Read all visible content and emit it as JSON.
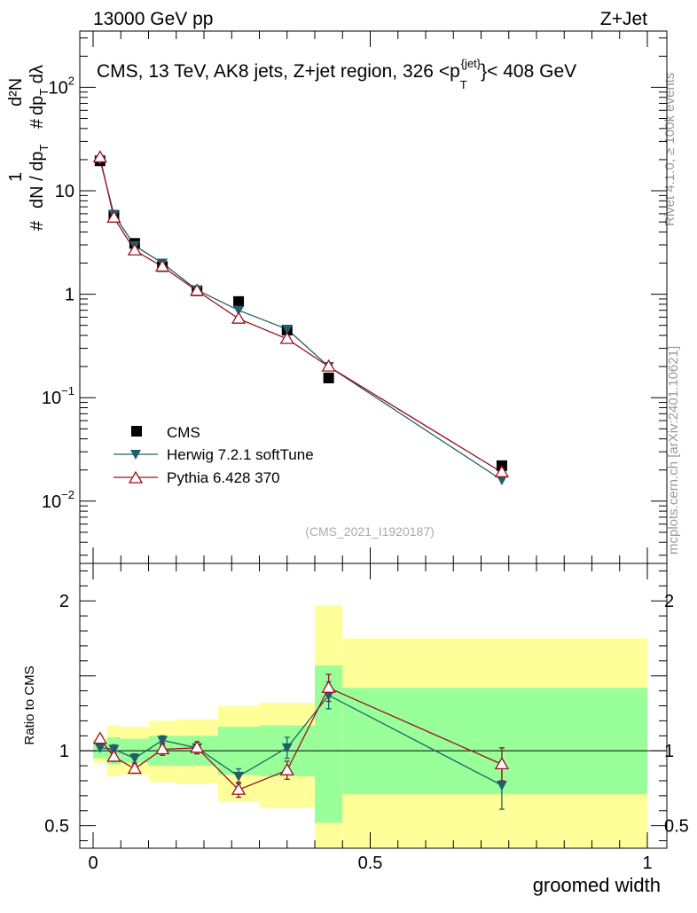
{
  "header": {
    "left": "13000 GeV pp",
    "right": "Z+Jet"
  },
  "side": {
    "rivet": "Rivet 4.1.0, ≥ 100k events",
    "mcplots": "mcplots.cern.ch [arXiv:2401.10621]"
  },
  "colors": {
    "cms": "#000000",
    "herwig": "#1f5f6b",
    "pythia": "#9b1020",
    "band_inner": "#99ff99",
    "band_outer": "#ffff99"
  },
  "chart_data": {
    "type": "line",
    "title": "CMS, 13 TeV, AK8 jets, Z+jet region, 326 <p_T^{jet}< 408 GeV",
    "title_main": "CMS, 13 TeV, AK8 jets, Z+jet region, 326 <p",
    "title_sup": "{jet}",
    "title_sub": "T",
    "title_end": "}< 408 GeV",
    "analysis_id": "(CMS_2021_I1920187)",
    "xlabel": "groomed width",
    "ylabel": "1/dN/dp_T  d²N/dp_T dλ",
    "xlim": [
      0,
      1
    ],
    "top": {
      "yscale": "log",
      "ylim": [
        0.0025,
        350
      ],
      "yticks": [
        {
          "v": 100,
          "base": "10",
          "exp": "2"
        },
        {
          "v": 10,
          "base": "10",
          "exp": ""
        },
        {
          "v": 1,
          "base": "1",
          "exp": ""
        },
        {
          "v": 0.1,
          "base": "10",
          "exp": "−1"
        },
        {
          "v": 0.01,
          "base": "10",
          "exp": "−2"
        }
      ],
      "series": [
        {
          "name": "CMS",
          "marker": "square",
          "x": [
            0.0125,
            0.0375,
            0.075,
            0.125,
            0.1875,
            0.2625,
            0.35,
            0.425,
            0.7375
          ],
          "y": [
            19.5,
            5.8,
            3.1,
            1.85,
            1.08,
            0.85,
            0.45,
            0.155,
            0.022
          ]
        },
        {
          "name": "Herwig 7.2.1 softTune",
          "marker": "triangle-down",
          "x": [
            0.0125,
            0.0375,
            0.075,
            0.125,
            0.1875,
            0.2625,
            0.35,
            0.425,
            0.7375
          ],
          "y": [
            20.0,
            5.9,
            2.95,
            2.0,
            1.1,
            0.7,
            0.46,
            0.2,
            0.016
          ]
        },
        {
          "name": "Pythia 6.428 370",
          "marker": "triangle-up-open",
          "x": [
            0.0125,
            0.0375,
            0.075,
            0.125,
            0.1875,
            0.2625,
            0.35,
            0.425,
            0.7375
          ],
          "y": [
            21.0,
            5.5,
            2.65,
            1.85,
            1.08,
            0.58,
            0.37,
            0.2,
            0.019
          ]
        }
      ]
    },
    "ratio": {
      "ylabel": "Ratio to CMS",
      "ylim": [
        0.35,
        2.25
      ],
      "yticks": [
        0.5,
        1,
        2
      ],
      "bands": [
        {
          "x0": 0.0,
          "x1": 0.025,
          "inner": [
            0.95,
            1.05
          ],
          "outer": [
            0.92,
            1.08
          ]
        },
        {
          "x0": 0.025,
          "x1": 0.05,
          "inner": [
            0.91,
            1.09
          ],
          "outer": [
            0.83,
            1.17
          ]
        },
        {
          "x0": 0.05,
          "x1": 0.1,
          "inner": [
            0.92,
            1.08
          ],
          "outer": [
            0.84,
            1.16
          ]
        },
        {
          "x0": 0.1,
          "x1": 0.15,
          "inner": [
            0.9,
            1.1
          ],
          "outer": [
            0.79,
            1.2
          ]
        },
        {
          "x0": 0.15,
          "x1": 0.225,
          "inner": [
            0.9,
            1.1
          ],
          "outer": [
            0.78,
            1.21
          ]
        },
        {
          "x0": 0.225,
          "x1": 0.3,
          "inner": [
            0.84,
            1.16
          ],
          "outer": [
            0.66,
            1.3
          ]
        },
        {
          "x0": 0.3,
          "x1": 0.4,
          "inner": [
            0.83,
            1.17
          ],
          "outer": [
            0.62,
            1.32
          ]
        },
        {
          "x0": 0.4,
          "x1": 0.45,
          "inner": [
            0.52,
            1.57
          ],
          "outer": [
            0.35,
            1.97
          ]
        },
        {
          "x0": 0.45,
          "x1": 1.0,
          "inner": [
            0.71,
            1.42
          ],
          "outer": [
            0.35,
            1.75
          ]
        }
      ],
      "series": [
        {
          "name": "Herwig 7.2.1 softTune",
          "marker": "triangle-down",
          "x": [
            0.0125,
            0.0375,
            0.075,
            0.125,
            0.1875,
            0.2625,
            0.35,
            0.425,
            0.7375
          ],
          "y": [
            1.02,
            1.01,
            0.95,
            1.07,
            1.02,
            0.83,
            1.02,
            1.37,
            0.77
          ],
          "err": [
            0.02,
            0.03,
            0.03,
            0.03,
            0.04,
            0.05,
            0.07,
            0.09,
            0.16
          ]
        },
        {
          "name": "Pythia 6.428 370",
          "marker": "triangle-up-open",
          "x": [
            0.0125,
            0.0375,
            0.075,
            0.125,
            0.1875,
            0.2625,
            0.35,
            0.425,
            0.7375
          ],
          "y": [
            1.08,
            0.96,
            0.88,
            1.01,
            1.02,
            0.74,
            0.87,
            1.42,
            0.91
          ],
          "err": [
            0.02,
            0.03,
            0.03,
            0.04,
            0.04,
            0.05,
            0.06,
            0.09,
            0.11
          ]
        }
      ]
    },
    "xticks": [
      {
        "v": 0,
        "label": "0"
      },
      {
        "v": 0.5,
        "label": "0.5"
      },
      {
        "v": 1,
        "label": "1"
      }
    ],
    "legend": {
      "placement": "lower-left",
      "entries": [
        {
          "label": "CMS",
          "marker": "square"
        },
        {
          "label": "Herwig 7.2.1 softTune",
          "marker": "triangle-down"
        },
        {
          "label": "Pythia 6.428 370",
          "marker": "triangle-up-open"
        }
      ]
    }
  }
}
